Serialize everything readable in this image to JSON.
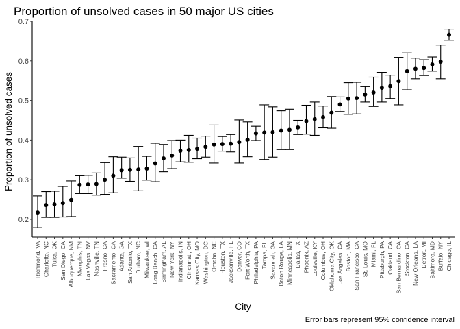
{
  "chart_data": {
    "type": "scatter",
    "title": "Proportion of unsolved cases in 50 major US cities",
    "xlabel": "City",
    "ylabel": "Proportion of unsolved cases",
    "caption": "Error bars represent 95% confidence interval",
    "ylim": [
      0.155,
      0.7
    ],
    "yticks": [
      0.2,
      0.3,
      0.4,
      0.5,
      0.6,
      0.7
    ],
    "ytick_labels": [
      "0.2",
      "0.3",
      "0.4",
      "0.5",
      "0.6",
      "0.7"
    ],
    "grid": false,
    "legend": "none",
    "point_color": "#000000",
    "categories": [
      "Richmond, VA",
      "Charlotte, NC",
      "Tulsa, OK",
      "San Diego, CA",
      "Albuquerque, NM",
      "Memphis, TN",
      "Las Vegas, NV",
      "Nashville, TN",
      "Fresno, CA",
      "Sacramento, CA",
      "Atlanta, GA",
      "San Antonio, TX",
      "Durham, NC",
      "Milwaukee, wI",
      "Long Beach, CA",
      "Birmingham, AL",
      "New York, NY",
      "Indianapolis, IN",
      "Cincinnati, OH",
      "Kansas City, MO",
      "Washington, DC",
      "Omaha, NE",
      "Houston, TX",
      "Jacksonville, FL",
      "Denver, CO",
      "Fort Worth, TX",
      "Philadelphia, PA",
      "Tampa, FL",
      "Savannah, GA",
      "Baton Rouge, LA",
      "Minneapolis, MN",
      "Dallas, TX",
      "Phoenix, AZ",
      "Louisville, KY",
      "Columbus, OH",
      "Oklahoma City, OK",
      "Los Angeles, CA",
      "Boston, MA",
      "San Francisco, CA",
      "St. Louis, MO",
      "Miami, FL",
      "Pittsburgh, PA",
      "Oakland, CA",
      "San Bernardino, CA",
      "Stockton, CA",
      "New Orleans, LA",
      "Detroit, MI",
      "Baltimore, MD",
      "Buffalo, NY",
      "Chicago, IL"
    ],
    "values": [
      0.217,
      0.236,
      0.238,
      0.241,
      0.249,
      0.287,
      0.288,
      0.289,
      0.3,
      0.31,
      0.324,
      0.325,
      0.326,
      0.328,
      0.341,
      0.354,
      0.361,
      0.373,
      0.375,
      0.378,
      0.383,
      0.389,
      0.39,
      0.391,
      0.395,
      0.401,
      0.417,
      0.419,
      0.42,
      0.424,
      0.426,
      0.432,
      0.448,
      0.453,
      0.458,
      0.469,
      0.49,
      0.505,
      0.506,
      0.515,
      0.52,
      0.532,
      0.536,
      0.549,
      0.574,
      0.58,
      0.582,
      0.591,
      0.598,
      0.666
    ],
    "ci_low": [
      0.179,
      0.205,
      0.205,
      0.206,
      0.207,
      0.265,
      0.265,
      0.261,
      0.263,
      0.267,
      0.304,
      0.296,
      0.272,
      0.299,
      0.295,
      0.32,
      0.328,
      0.345,
      0.344,
      0.353,
      0.357,
      0.342,
      0.372,
      0.37,
      0.342,
      0.358,
      0.399,
      0.351,
      0.357,
      0.376,
      0.376,
      0.414,
      0.415,
      0.412,
      0.431,
      0.43,
      0.472,
      0.465,
      0.466,
      0.496,
      0.485,
      0.496,
      0.505,
      0.489,
      0.527,
      0.555,
      0.563,
      0.574,
      0.555,
      0.652
    ],
    "ci_high": [
      0.259,
      0.27,
      0.271,
      0.283,
      0.297,
      0.31,
      0.311,
      0.317,
      0.343,
      0.358,
      0.357,
      0.355,
      0.384,
      0.359,
      0.392,
      0.389,
      0.399,
      0.4,
      0.412,
      0.405,
      0.41,
      0.438,
      0.409,
      0.414,
      0.451,
      0.446,
      0.435,
      0.489,
      0.484,
      0.474,
      0.478,
      0.45,
      0.488,
      0.496,
      0.486,
      0.51,
      0.509,
      0.545,
      0.546,
      0.535,
      0.559,
      0.571,
      0.564,
      0.609,
      0.62,
      0.607,
      0.603,
      0.61,
      0.64,
      0.68
    ]
  }
}
